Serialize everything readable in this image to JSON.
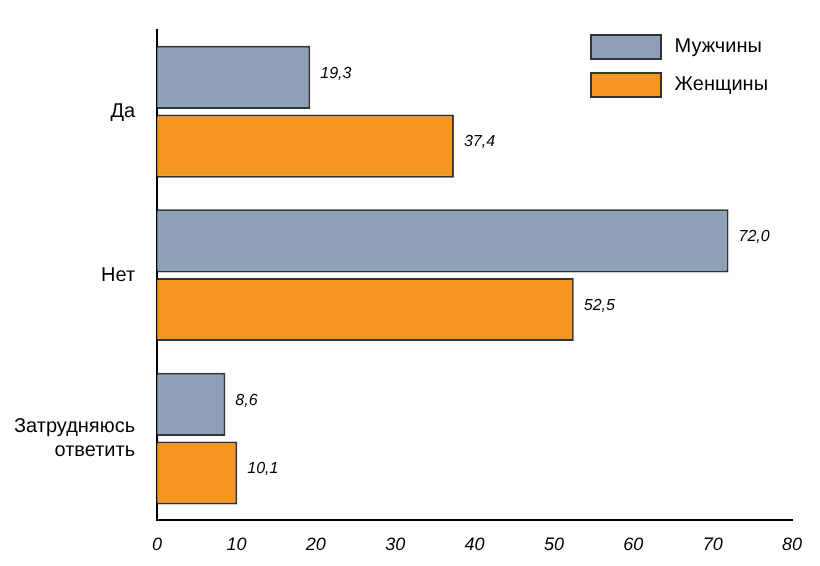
{
  "chart_data": {
    "type": "bar",
    "orientation": "horizontal",
    "categories": [
      "Да",
      "Нет",
      "Затрудняюсь ответить"
    ],
    "series": [
      {
        "name": "Мужчины",
        "color": "#8e9fb8",
        "values": [
          19.3,
          72.0,
          8.6
        ],
        "value_labels": [
          "19,3",
          "72,0",
          "8,6"
        ]
      },
      {
        "name": "Женщины",
        "color": "#f5961e",
        "values": [
          37.4,
          52.5,
          10.1
        ],
        "value_labels": [
          "37,4",
          "52,5",
          "10,1"
        ]
      }
    ],
    "xlim": [
      0,
      80
    ],
    "xticks": [
      0,
      10,
      20,
      30,
      40,
      50,
      60,
      70,
      80
    ],
    "grid": false,
    "legend": "top right"
  }
}
